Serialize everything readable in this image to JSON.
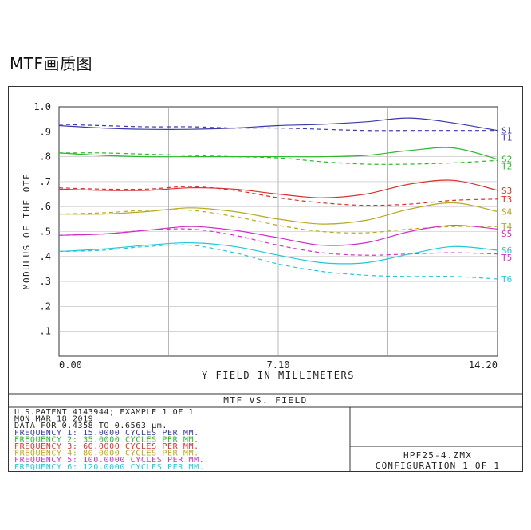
{
  "page_heading": "MTF画质图",
  "chart_data": {
    "type": "line",
    "title": "MTF VS. FIELD",
    "xlabel": "Y FIELD IN MILLIMETERS",
    "ylabel": "MODULUS OF THE OTF",
    "xlim": [
      0,
      14.2
    ],
    "ylim": [
      0,
      1.0
    ],
    "x_ticks": [
      "0.00",
      "7.10",
      "14.20"
    ],
    "y_ticks": [
      ".1",
      ".2",
      ".3",
      ".4",
      ".5",
      ".6",
      ".7",
      ".8",
      ".9",
      "1.0"
    ],
    "grid": true,
    "x": [
      0,
      1.42,
      2.84,
      4.26,
      5.68,
      7.1,
      8.52,
      9.94,
      11.36,
      12.78,
      14.2
    ],
    "series": [
      {
        "name": "S1",
        "color": "#3a3aa8",
        "style": "solid",
        "values": [
          0.925,
          0.915,
          0.91,
          0.91,
          0.915,
          0.925,
          0.93,
          0.94,
          0.955,
          0.935,
          0.905
        ]
      },
      {
        "name": "T1",
        "color": "#3a3aa8",
        "style": "dashed",
        "values": [
          0.93,
          0.925,
          0.92,
          0.92,
          0.915,
          0.915,
          0.91,
          0.905,
          0.905,
          0.905,
          0.905
        ]
      },
      {
        "name": "S2",
        "color": "#2db82d",
        "style": "solid",
        "values": [
          0.815,
          0.805,
          0.8,
          0.8,
          0.8,
          0.8,
          0.8,
          0.805,
          0.825,
          0.835,
          0.79
        ]
      },
      {
        "name": "T2",
        "color": "#2db82d",
        "style": "dashed",
        "values": [
          0.815,
          0.815,
          0.81,
          0.805,
          0.8,
          0.795,
          0.78,
          0.77,
          0.77,
          0.775,
          0.785
        ]
      },
      {
        "name": "S3",
        "color": "#d93030",
        "style": "solid",
        "values": [
          0.67,
          0.665,
          0.665,
          0.675,
          0.67,
          0.65,
          0.635,
          0.65,
          0.69,
          0.705,
          0.665
        ]
      },
      {
        "name": "T3",
        "color": "#d93030",
        "style": "dashed",
        "values": [
          0.675,
          0.67,
          0.67,
          0.68,
          0.665,
          0.635,
          0.615,
          0.605,
          0.61,
          0.625,
          0.63
        ]
      },
      {
        "name": "S4",
        "color": "#b8a820",
        "style": "solid",
        "values": [
          0.57,
          0.57,
          0.58,
          0.595,
          0.58,
          0.55,
          0.53,
          0.545,
          0.59,
          0.615,
          0.58
        ]
      },
      {
        "name": "T4",
        "color": "#b8a820",
        "style": "dashed",
        "values": [
          0.57,
          0.575,
          0.585,
          0.585,
          0.56,
          0.525,
          0.5,
          0.495,
          0.51,
          0.52,
          0.52
        ]
      },
      {
        "name": "S5",
        "color": "#d030c8",
        "style": "solid",
        "values": [
          0.485,
          0.49,
          0.505,
          0.52,
          0.505,
          0.475,
          0.445,
          0.455,
          0.5,
          0.525,
          0.51
        ]
      },
      {
        "name": "T5",
        "color": "#d030c8",
        "style": "dashed",
        "values": [
          0.485,
          0.49,
          0.505,
          0.51,
          0.485,
          0.445,
          0.415,
          0.405,
          0.41,
          0.415,
          0.41
        ]
      },
      {
        "name": "S6",
        "color": "#22c8d8",
        "style": "solid",
        "values": [
          0.42,
          0.43,
          0.445,
          0.455,
          0.44,
          0.405,
          0.375,
          0.375,
          0.41,
          0.44,
          0.425
        ]
      },
      {
        "name": "T6",
        "color": "#22c8d8",
        "style": "dashed",
        "values": [
          0.42,
          0.425,
          0.44,
          0.445,
          0.415,
          0.37,
          0.34,
          0.325,
          0.32,
          0.32,
          0.31
        ]
      }
    ]
  },
  "info_lines": [
    {
      "text": "U.S.PATENT 4143944; EXAMPLE 1 OF 1",
      "color": "#222222"
    },
    {
      "text": "MON MAR 18 2019",
      "color": "#222222"
    },
    {
      "text": "DATA FOR 0.4358 TO 0.6563 µm.",
      "color": "#222222"
    },
    {
      "text": "FREQUENCY 1:  15.0000 CYCLES PER MM.",
      "color": "#3a3aa8"
    },
    {
      "text": "FREQUENCY 2:  35.0000 CYCLES PER MM.",
      "color": "#2db82d"
    },
    {
      "text": "FREQUENCY 3:  60.0000 CYCLES PER MM.",
      "color": "#d93030"
    },
    {
      "text": "FREQUENCY 4:  80.0000 CYCLES PER MM.",
      "color": "#b8a820"
    },
    {
      "text": "FREQUENCY 5: 100.0000 CYCLES PER MM.",
      "color": "#d030c8"
    },
    {
      "text": "FREQUENCY 6: 120.0000 CYCLES PER MM.",
      "color": "#22c8d8"
    }
  ],
  "file_name": "HPF25-4.ZMX",
  "configuration": "CONFIGURATION 1 OF 1"
}
